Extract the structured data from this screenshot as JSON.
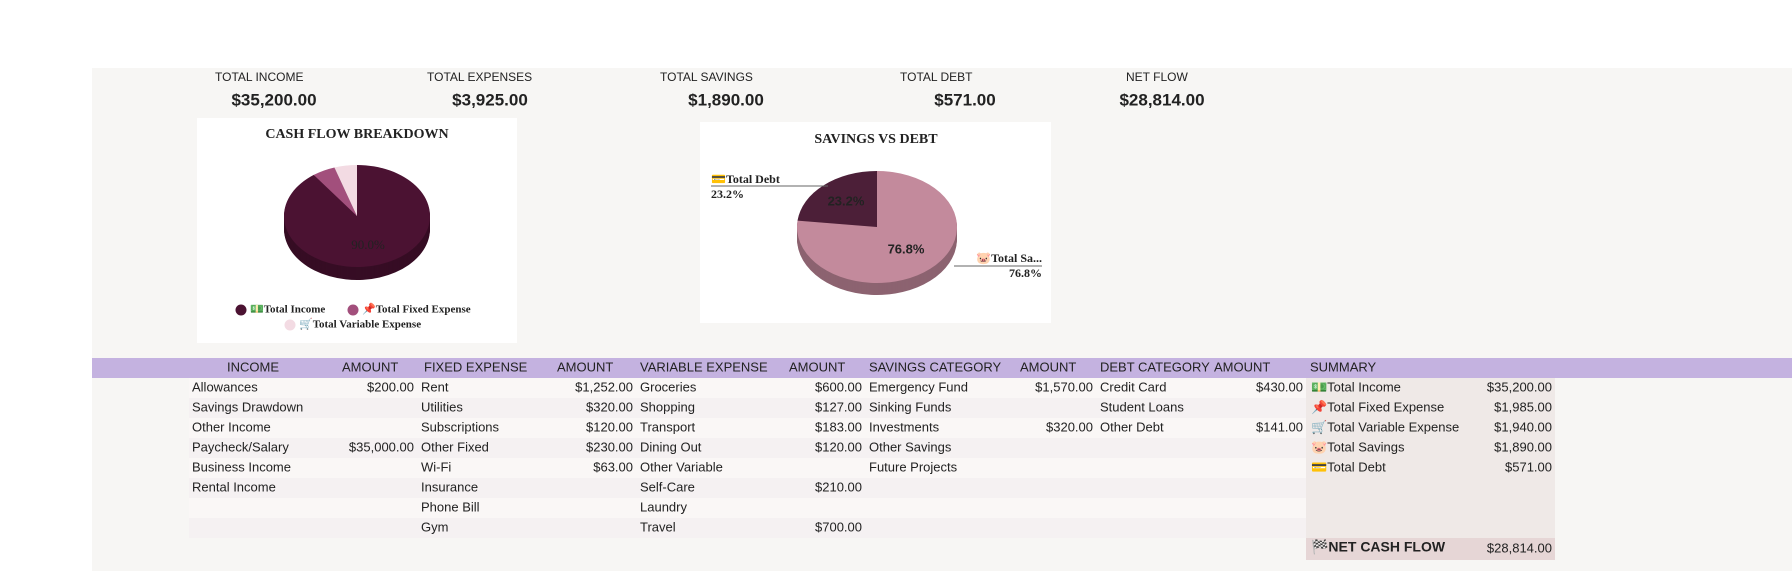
{
  "kpis": [
    {
      "label": "TOTAL INCOME",
      "value": "$35,200.00"
    },
    {
      "label": "TOTAL EXPENSES",
      "value": "$3,925.00"
    },
    {
      "label": "TOTAL SAVINGS",
      "value": "$1,890.00"
    },
    {
      "label": "TOTAL DEBT",
      "value": "$571.00"
    },
    {
      "label": "NET FLOW",
      "value": "$28,814.00"
    }
  ],
  "chart_data": [
    {
      "type": "pie",
      "title": "CASH FLOW BREAKDOWN",
      "clockwise": true,
      "series": [
        {
          "name": "💵Total Income",
          "color": "#4b1232",
          "values": [
            90.0
          ],
          "value_labels": [
            "90.0%"
          ]
        },
        {
          "name": "📌Total Fixed Expense",
          "color": "#a24f7c",
          "values": [
            5.1
          ]
        },
        {
          "name": "🛒Total Variable Expense",
          "color": "#f3dbe3",
          "values": [
            5.0
          ]
        }
      ]
    },
    {
      "type": "pie",
      "title": "SAVINGS VS DEBT",
      "clockwise": false,
      "series": [
        {
          "name": "💳Total Debt",
          "color": "#4c1f38",
          "values": [
            23.2
          ],
          "value_labels": [
            "23.2%"
          ]
        },
        {
          "name": "🐷Total Sa...",
          "color": "#c38a9c",
          "values": [
            76.8
          ],
          "value_labels": [
            "76.8%"
          ]
        }
      ]
    }
  ],
  "table": {
    "header": [
      "INCOME",
      "AMOUNT",
      "FIXED EXPENSE",
      "AMOUNT",
      "VARIABLE EXPENSE",
      "AMOUNT",
      "SAVINGS CATEGORY",
      "AMOUNT",
      "DEBT CATEGORY",
      "AMOUNT",
      "SUMMARY"
    ],
    "rows": [
      [
        "Allowances",
        "$200.00",
        "Rent",
        "$1,252.00",
        "Groceries",
        "$600.00",
        "Emergency Fund",
        "$1,570.00",
        "Credit Card",
        "$430.00",
        "💵Total Income",
        "$35,200.00"
      ],
      [
        "Savings Drawdown",
        null,
        "Utilities",
        "$320.00",
        "Shopping",
        "$127.00",
        "Sinking Funds",
        null,
        "Student Loans",
        null,
        "📌Total Fixed Expense",
        "$1,985.00"
      ],
      [
        "Other Income",
        null,
        "Subscriptions",
        "$120.00",
        "Transport",
        "$183.00",
        "Investments",
        "$320.00",
        "Other Debt",
        "$141.00",
        "🛒Total Variable Expense",
        "$1,940.00"
      ],
      [
        "Paycheck/Salary",
        "$35,000.00",
        "Other Fixed",
        "$230.00",
        "Dining Out",
        "$120.00",
        "Other Savings",
        null,
        null,
        null,
        "🐷Total Savings",
        "$1,890.00"
      ],
      [
        "Business Income",
        null,
        "Wi-Fi",
        "$63.00",
        "Other Variable",
        null,
        "Future Projects",
        null,
        null,
        null,
        "💳Total Debt",
        "$571.00"
      ],
      [
        "Rental Income",
        null,
        "Insurance",
        null,
        "Self-Care",
        "$210.00",
        null,
        null,
        null,
        null,
        null,
        null
      ],
      [
        null,
        null,
        "Phone Bill",
        null,
        "Laundry",
        null,
        null,
        null,
        null,
        null,
        null,
        null
      ],
      [
        null,
        null,
        "Gym",
        null,
        "Travel",
        "$700.00",
        null,
        null,
        null,
        null,
        null,
        null
      ]
    ],
    "net": [
      "🏁NET CASH FLOW",
      "$28,814.00"
    ]
  }
}
